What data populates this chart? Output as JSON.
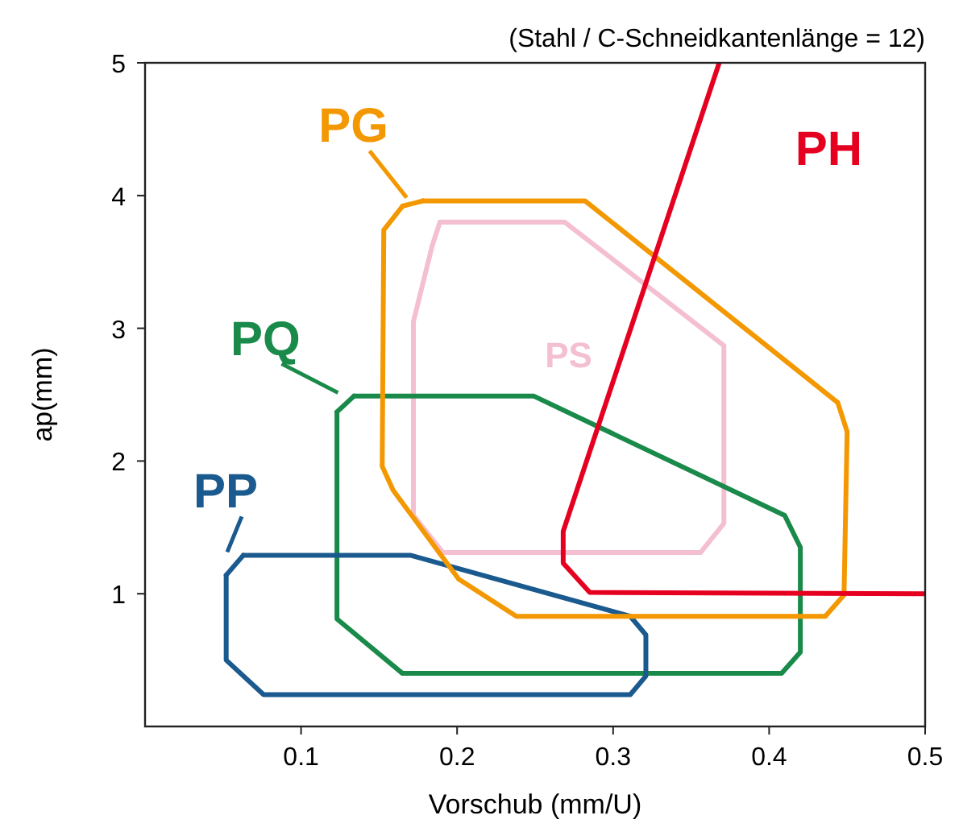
{
  "chart_data": {
    "type": "line",
    "xlabel": "Vorschub (mm/U)",
    "ylabel": "ap(mm)",
    "xlim": [
      0,
      0.5
    ],
    "ylim": [
      0,
      5
    ],
    "xticks": [
      0.1,
      0.2,
      0.3,
      0.4,
      0.5
    ],
    "yticks": [
      1,
      2,
      3,
      4,
      5
    ],
    "grid": false,
    "legend": false,
    "marker": "none",
    "line_style": "solid",
    "series": [
      {
        "name": "PS",
        "color": "#f4bfd0",
        "x": [
          0.189,
          0.269,
          0.371,
          0.371,
          0.356,
          0.191,
          0.172,
          0.172,
          0.176,
          0.18,
          0.184
        ],
        "values": [
          3.8,
          3.8,
          2.87,
          1.53,
          1.31,
          1.31,
          1.59,
          3.05,
          3.24,
          3.43,
          3.62
        ]
      },
      {
        "name": "PQ",
        "color": "#1a8a4a",
        "x": [
          0.134,
          0.249,
          0.41,
          0.42,
          0.42,
          0.408,
          0.165,
          0.123,
          0.123
        ],
        "values": [
          2.49,
          2.49,
          1.59,
          1.35,
          0.56,
          0.4,
          0.4,
          0.81,
          2.37
        ]
      },
      {
        "name": "PP",
        "color": "#1a5a8e",
        "x": [
          0.063,
          0.17,
          0.311,
          0.321,
          0.321,
          0.311,
          0.076,
          0.052,
          0.052
        ],
        "values": [
          1.29,
          1.29,
          0.83,
          0.69,
          0.38,
          0.24,
          0.24,
          0.5,
          1.14
        ]
      },
      {
        "name": "PG",
        "color": "#f39800",
        "x": [
          0.178,
          0.282,
          0.444,
          0.45,
          0.448,
          0.436,
          0.238,
          0.201,
          0.159,
          0.152,
          0.153,
          0.165
        ],
        "values": [
          3.96,
          3.96,
          2.44,
          2.22,
          0.99,
          0.83,
          0.83,
          1.11,
          1.78,
          1.96,
          3.74,
          3.92
        ]
      },
      {
        "name": "PH",
        "color": "#e60020",
        "x": [
          0.368,
          0.268,
          0.268,
          0.285,
          0.5
        ],
        "values": [
          5,
          1.47,
          1.23,
          1.01,
          1
        ]
      }
    ],
    "annotations": [
      "(Stahl / C-Schneidkantenlänge = 12)"
    ]
  }
}
